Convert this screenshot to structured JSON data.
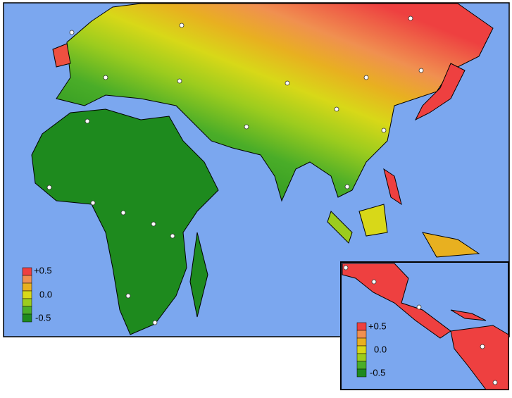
{
  "main_map": {
    "legend": {
      "labels": [
        "+0.5",
        "0.0",
        "-0.5"
      ]
    }
  },
  "inset_map": {
    "legend": {
      "labels": [
        "+0.5",
        "0.0",
        "-0.5"
      ]
    }
  }
}
